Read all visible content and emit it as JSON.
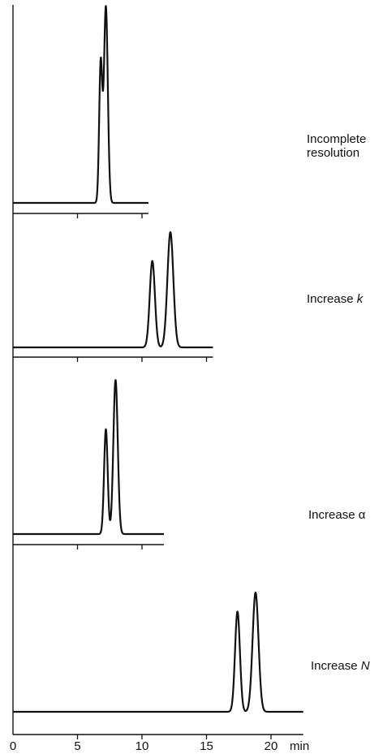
{
  "chart_data": [
    {
      "type": "line",
      "label": [
        "Incomplete",
        "resolution"
      ],
      "x_range": [
        0,
        10.5
      ],
      "peaks": [
        {
          "x": 6.8,
          "height": 0.71
        },
        {
          "x": 7.2,
          "height": 1.0
        }
      ],
      "peak_width": [
        0.12,
        0.15
      ]
    },
    {
      "type": "line",
      "label": [
        "Increase ",
        "k"
      ],
      "x_range": [
        0,
        15.5
      ],
      "peaks": [
        {
          "x": 10.8,
          "height": 0.75
        },
        {
          "x": 12.2,
          "height": 1.0
        }
      ],
      "peak_width": [
        0.2,
        0.23
      ]
    },
    {
      "type": "line",
      "label": [
        "Increase α"
      ],
      "x_range": [
        0,
        11.7
      ],
      "peaks": [
        {
          "x": 7.2,
          "height": 0.68
        },
        {
          "x": 7.95,
          "height": 1.0
        }
      ],
      "peak_width": [
        0.14,
        0.17
      ]
    },
    {
      "type": "line",
      "label": [
        "Increase ",
        "N"
      ],
      "x_range": [
        0,
        22.5
      ],
      "peaks": [
        {
          "x": 17.4,
          "height": 0.84
        },
        {
          "x": 18.8,
          "height": 1.0
        }
      ],
      "peak_width": [
        0.19,
        0.23
      ]
    }
  ],
  "x_axis": {
    "ticks": [
      0,
      5,
      10,
      15,
      20
    ],
    "tick_labels": [
      "0",
      "5",
      "10",
      "15",
      "20"
    ],
    "unit": "min"
  }
}
